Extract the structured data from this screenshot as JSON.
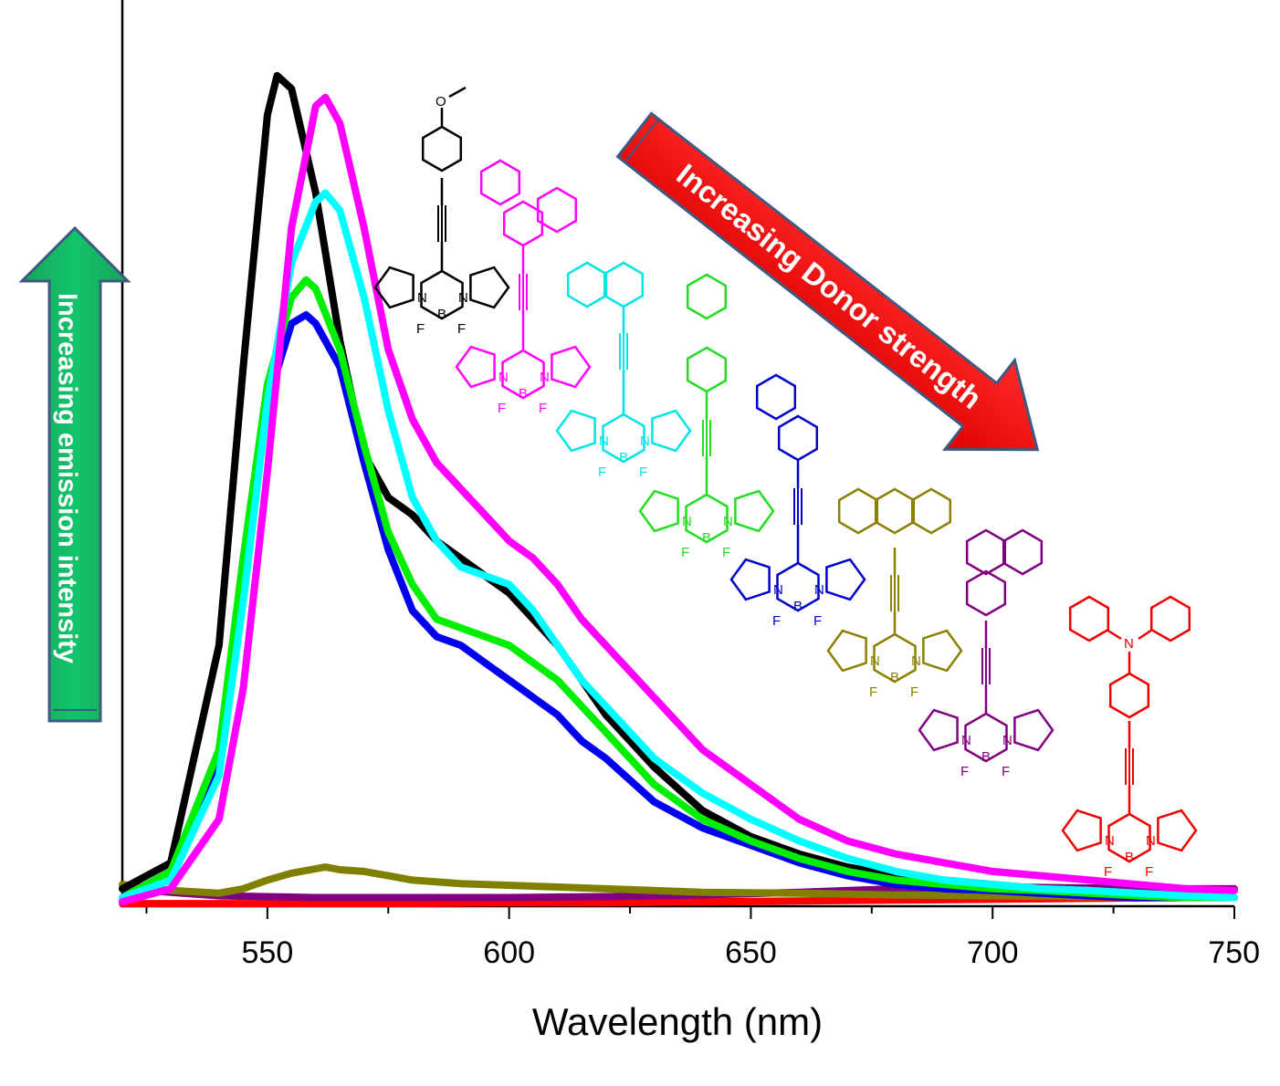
{
  "chart_data": {
    "type": "line",
    "title": "",
    "xlabel": "Wavelength (nm)",
    "ylabel": "",
    "xlim": [
      520,
      750
    ],
    "ylim": [
      0,
      1.0
    ],
    "x_ticks": [
      550,
      600,
      650,
      700,
      750
    ],
    "grid": false,
    "legend": "none",
    "annotations": {
      "intensity_arrow": "Increasing emission intensity",
      "donor_arrow": "Increasing Donor strength"
    },
    "series": [
      {
        "color": "#000000",
        "x": [
          520,
          530,
          540,
          545,
          550,
          552,
          555,
          560,
          565,
          570,
          575,
          580,
          585,
          590,
          595,
          600,
          605,
          610,
          615,
          620,
          630,
          640,
          650,
          660,
          670,
          680,
          690,
          700,
          710,
          720,
          730,
          740,
          750
        ],
        "y": [
          0.02,
          0.05,
          0.3,
          0.62,
          0.91,
          0.955,
          0.94,
          0.82,
          0.65,
          0.52,
          0.47,
          0.45,
          0.42,
          0.4,
          0.38,
          0.36,
          0.33,
          0.3,
          0.26,
          0.22,
          0.16,
          0.11,
          0.08,
          0.06,
          0.045,
          0.035,
          0.03,
          0.025,
          0.02,
          0.015,
          0.012,
          0.01,
          0.01
        ]
      },
      {
        "color": "#ff00ff",
        "x": [
          520,
          530,
          540,
          545,
          550,
          555,
          560,
          562,
          565,
          570,
          575,
          580,
          585,
          590,
          595,
          600,
          605,
          610,
          615,
          620,
          630,
          640,
          650,
          660,
          670,
          680,
          690,
          700,
          710,
          720,
          730,
          740,
          750
        ],
        "y": [
          0.005,
          0.02,
          0.1,
          0.25,
          0.5,
          0.78,
          0.92,
          0.93,
          0.9,
          0.78,
          0.64,
          0.56,
          0.51,
          0.48,
          0.45,
          0.42,
          0.4,
          0.37,
          0.33,
          0.3,
          0.24,
          0.18,
          0.14,
          0.1,
          0.075,
          0.06,
          0.05,
          0.04,
          0.035,
          0.03,
          0.025,
          0.02,
          0.018
        ]
      },
      {
        "color": "#00ffff",
        "x": [
          520,
          530,
          540,
          545,
          550,
          555,
          560,
          562,
          565,
          570,
          575,
          580,
          585,
          590,
          595,
          600,
          605,
          610,
          615,
          620,
          630,
          640,
          650,
          660,
          670,
          680,
          690,
          700,
          710,
          720,
          730,
          740,
          750
        ],
        "y": [
          0.01,
          0.03,
          0.15,
          0.35,
          0.58,
          0.74,
          0.81,
          0.82,
          0.8,
          0.7,
          0.57,
          0.47,
          0.42,
          0.39,
          0.38,
          0.37,
          0.34,
          0.3,
          0.26,
          0.23,
          0.17,
          0.13,
          0.1,
          0.075,
          0.055,
          0.04,
          0.03,
          0.025,
          0.02,
          0.018,
          0.015,
          0.012,
          0.01
        ]
      },
      {
        "color": "#00ee00",
        "x": [
          520,
          530,
          540,
          545,
          550,
          555,
          558,
          560,
          565,
          570,
          575,
          580,
          585,
          590,
          595,
          600,
          605,
          610,
          615,
          620,
          630,
          640,
          650,
          660,
          670,
          680,
          690,
          700,
          710,
          720,
          730,
          740,
          750
        ],
        "y": [
          0.01,
          0.04,
          0.18,
          0.4,
          0.6,
          0.7,
          0.72,
          0.71,
          0.64,
          0.53,
          0.43,
          0.37,
          0.33,
          0.32,
          0.31,
          0.3,
          0.28,
          0.26,
          0.23,
          0.2,
          0.14,
          0.1,
          0.075,
          0.055,
          0.04,
          0.03,
          0.025,
          0.02,
          0.018,
          0.015,
          0.012,
          0.01,
          0.01
        ]
      },
      {
        "color": "#0000ee",
        "x": [
          520,
          530,
          540,
          545,
          550,
          555,
          558,
          560,
          565,
          570,
          575,
          580,
          585,
          590,
          595,
          600,
          605,
          610,
          615,
          620,
          630,
          640,
          650,
          660,
          670,
          680,
          690,
          700,
          710,
          720,
          730,
          740,
          750
        ],
        "y": [
          0.01,
          0.04,
          0.17,
          0.38,
          0.58,
          0.67,
          0.68,
          0.67,
          0.62,
          0.51,
          0.41,
          0.34,
          0.31,
          0.3,
          0.28,
          0.26,
          0.24,
          0.22,
          0.19,
          0.17,
          0.12,
          0.09,
          0.07,
          0.05,
          0.035,
          0.025,
          0.02,
          0.018,
          0.015,
          0.012,
          0.01,
          0.01,
          0.01
        ]
      },
      {
        "color": "#808000",
        "x": [
          520,
          530,
          540,
          545,
          550,
          555,
          560,
          562,
          565,
          570,
          575,
          580,
          590,
          600,
          620,
          640,
          660,
          680,
          700,
          720,
          740,
          750
        ],
        "y": [
          0.025,
          0.018,
          0.015,
          0.02,
          0.03,
          0.038,
          0.043,
          0.045,
          0.042,
          0.04,
          0.035,
          0.03,
          0.026,
          0.024,
          0.02,
          0.016,
          0.015,
          0.013,
          0.012,
          0.011,
          0.01,
          0.01
        ]
      },
      {
        "color": "#800080",
        "x": [
          520,
          540,
          560,
          580,
          600,
          620,
          640,
          660,
          680,
          700,
          720,
          740,
          750
        ],
        "y": [
          0.02,
          0.012,
          0.01,
          0.01,
          0.01,
          0.011,
          0.013,
          0.016,
          0.02,
          0.022,
          0.021,
          0.02,
          0.02
        ]
      },
      {
        "color": "#ff0000",
        "x": [
          520,
          540,
          560,
          580,
          600,
          620,
          640,
          660,
          680,
          700,
          720,
          740,
          750
        ],
        "y": [
          0.003,
          0.003,
          0.003,
          0.003,
          0.004,
          0.004,
          0.005,
          0.006,
          0.007,
          0.008,
          0.009,
          0.01,
          0.01
        ]
      }
    ]
  },
  "molecules": [
    {
      "color": "#000000",
      "donor": "methoxyphenyl",
      "atoms": {
        "N": "N",
        "B": "B",
        "F": "F",
        "O": "O"
      }
    },
    {
      "color": "#ff00ff",
      "donor": "phenanthryl",
      "atoms": {
        "N": "N",
        "B": "B",
        "F": "F"
      }
    },
    {
      "color": "#00e5e5",
      "donor": "naphthyl",
      "atoms": {
        "N": "N",
        "B": "B",
        "F": "F"
      }
    },
    {
      "color": "#22dd22",
      "donor": "biphenyl",
      "atoms": {
        "N": "N",
        "B": "B",
        "F": "F"
      }
    },
    {
      "color": "#0000cc",
      "donor": "2-naphthyl",
      "atoms": {
        "N": "N",
        "B": "B",
        "F": "F"
      }
    },
    {
      "color": "#8b8000",
      "donor": "anthryl",
      "atoms": {
        "N": "N",
        "B": "B",
        "F": "F"
      }
    },
    {
      "color": "#800080",
      "donor": "pyrenyl",
      "atoms": {
        "N": "N",
        "B": "B",
        "F": "F"
      }
    },
    {
      "color": "#ee0000",
      "donor": "triphenylamine",
      "atoms": {
        "N": "N",
        "B": "B",
        "F": "F"
      }
    }
  ]
}
